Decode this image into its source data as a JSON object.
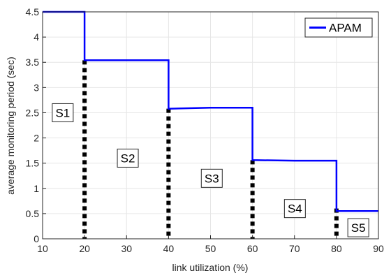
{
  "chart_data": {
    "type": "line",
    "title": "",
    "xlabel": "link utilization (%)",
    "ylabel": "average monitoring period (sec)",
    "xlim": [
      10,
      90
    ],
    "ylim": [
      0,
      4.5
    ],
    "xticks": [
      "10",
      "20",
      "30",
      "40",
      "50",
      "60",
      "70",
      "80",
      "90"
    ],
    "yticks": [
      "0",
      "0.5",
      "1",
      "1.5",
      "2",
      "2.5",
      "3",
      "3.5",
      "4",
      "4.5"
    ],
    "grid": true,
    "legend_position": "top-right",
    "series": [
      {
        "name": "APAM",
        "color": "#0000ff",
        "style": "step",
        "x": [
          10,
          20,
          20,
          40,
          40,
          50,
          60,
          60,
          70,
          80,
          80,
          90
        ],
        "y": [
          4.5,
          4.5,
          3.54,
          3.54,
          2.58,
          2.6,
          2.6,
          1.56,
          1.55,
          1.55,
          0.55,
          0.55
        ]
      }
    ],
    "boundaries": {
      "style": "dotted",
      "color": "#000000",
      "lines": [
        {
          "x": 20,
          "y_top": 3.54
        },
        {
          "x": 40,
          "y_top": 2.58
        },
        {
          "x": 60,
          "y_top": 1.56
        },
        {
          "x": 80,
          "y_top": 0.6
        }
      ]
    },
    "annotations": [
      {
        "text": "S1",
        "x": 14.8,
        "y": 2.5
      },
      {
        "text": "S2",
        "x": 30.3,
        "y": 1.6
      },
      {
        "text": "S3",
        "x": 50.3,
        "y": 1.2
      },
      {
        "text": "S4",
        "x": 70.1,
        "y": 0.6
      },
      {
        "text": "S5",
        "x": 85.2,
        "y": 0.22
      }
    ]
  }
}
